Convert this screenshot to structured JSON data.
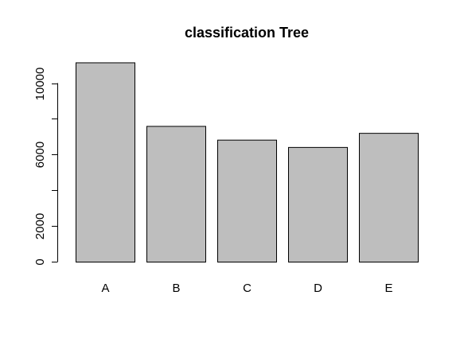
{
  "chart_data": {
    "type": "bar",
    "title": "classification Tree",
    "xlabel": "",
    "ylabel": "",
    "categories": [
      "A",
      "B",
      "C",
      "D",
      "E"
    ],
    "values": [
      11160,
      7600,
      6830,
      6420,
      7210
    ],
    "ylim": [
      0,
      11600
    ],
    "yticks": [
      0,
      2000,
      4000,
      6000,
      8000,
      10000
    ],
    "ytick_labels": [
      "0",
      "2000",
      "",
      "6000",
      "",
      "10000"
    ],
    "bar_color": "#bebebe",
    "grid": false,
    "legend": "none"
  }
}
